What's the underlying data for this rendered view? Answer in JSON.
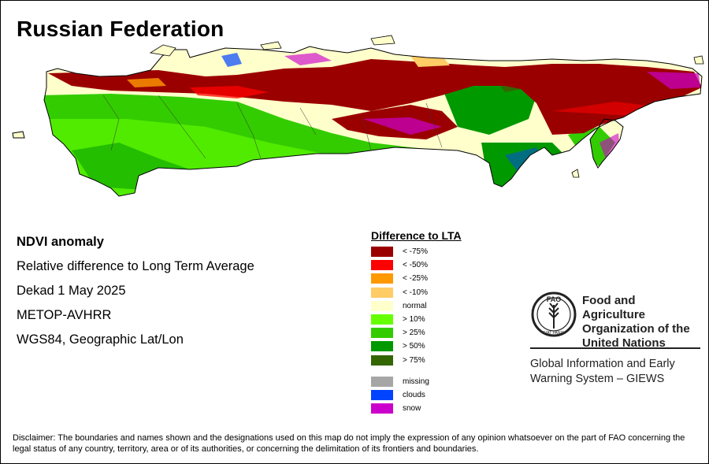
{
  "title": "Russian Federation",
  "info": {
    "product": "NDVI anomaly",
    "description": "Relative difference to Long Term Average",
    "period": "Dekad 1 May 2025",
    "sensor": "METOP-AVHRR",
    "projection": "WGS84, Geographic Lat/Lon"
  },
  "legend": {
    "title": "Difference to LTA",
    "items": [
      {
        "label": "< -75%",
        "color": "#9b0000"
      },
      {
        "label": "< -50%",
        "color": "#ff0000"
      },
      {
        "label": "< -25%",
        "color": "#ff9900"
      },
      {
        "label": "< -10%",
        "color": "#ffcc66"
      },
      {
        "label": "normal",
        "color": "#ffffcc"
      },
      {
        "label": "> 10%",
        "color": "#66ff00"
      },
      {
        "label": "> 25%",
        "color": "#33cc00"
      },
      {
        "label": "> 50%",
        "color": "#009900"
      },
      {
        "label": "> 75%",
        "color": "#336600"
      }
    ],
    "extra": [
      {
        "label": "missing",
        "color": "#a6a6a6"
      },
      {
        "label": "clouds",
        "color": "#0044ff"
      },
      {
        "label": "snow",
        "color": "#cc00cc"
      }
    ]
  },
  "organization": {
    "logo_text": "FAO",
    "logo_motto": "FIAT PANIS",
    "name_lines": [
      "Food and Agriculture",
      "Organization of the",
      "United Nations"
    ],
    "system_lines": [
      "Global Information and Early",
      "Warning System – GIEWS"
    ]
  },
  "disclaimer": "Disclaimer: The boundaries and names shown and the designations used on this map do not imply the expression of any opinion whatsoever on the part of FAO concerning the legal status of any country, territory, area or of its authorities, or concerning the delimitation of its frontiers and boundaries."
}
